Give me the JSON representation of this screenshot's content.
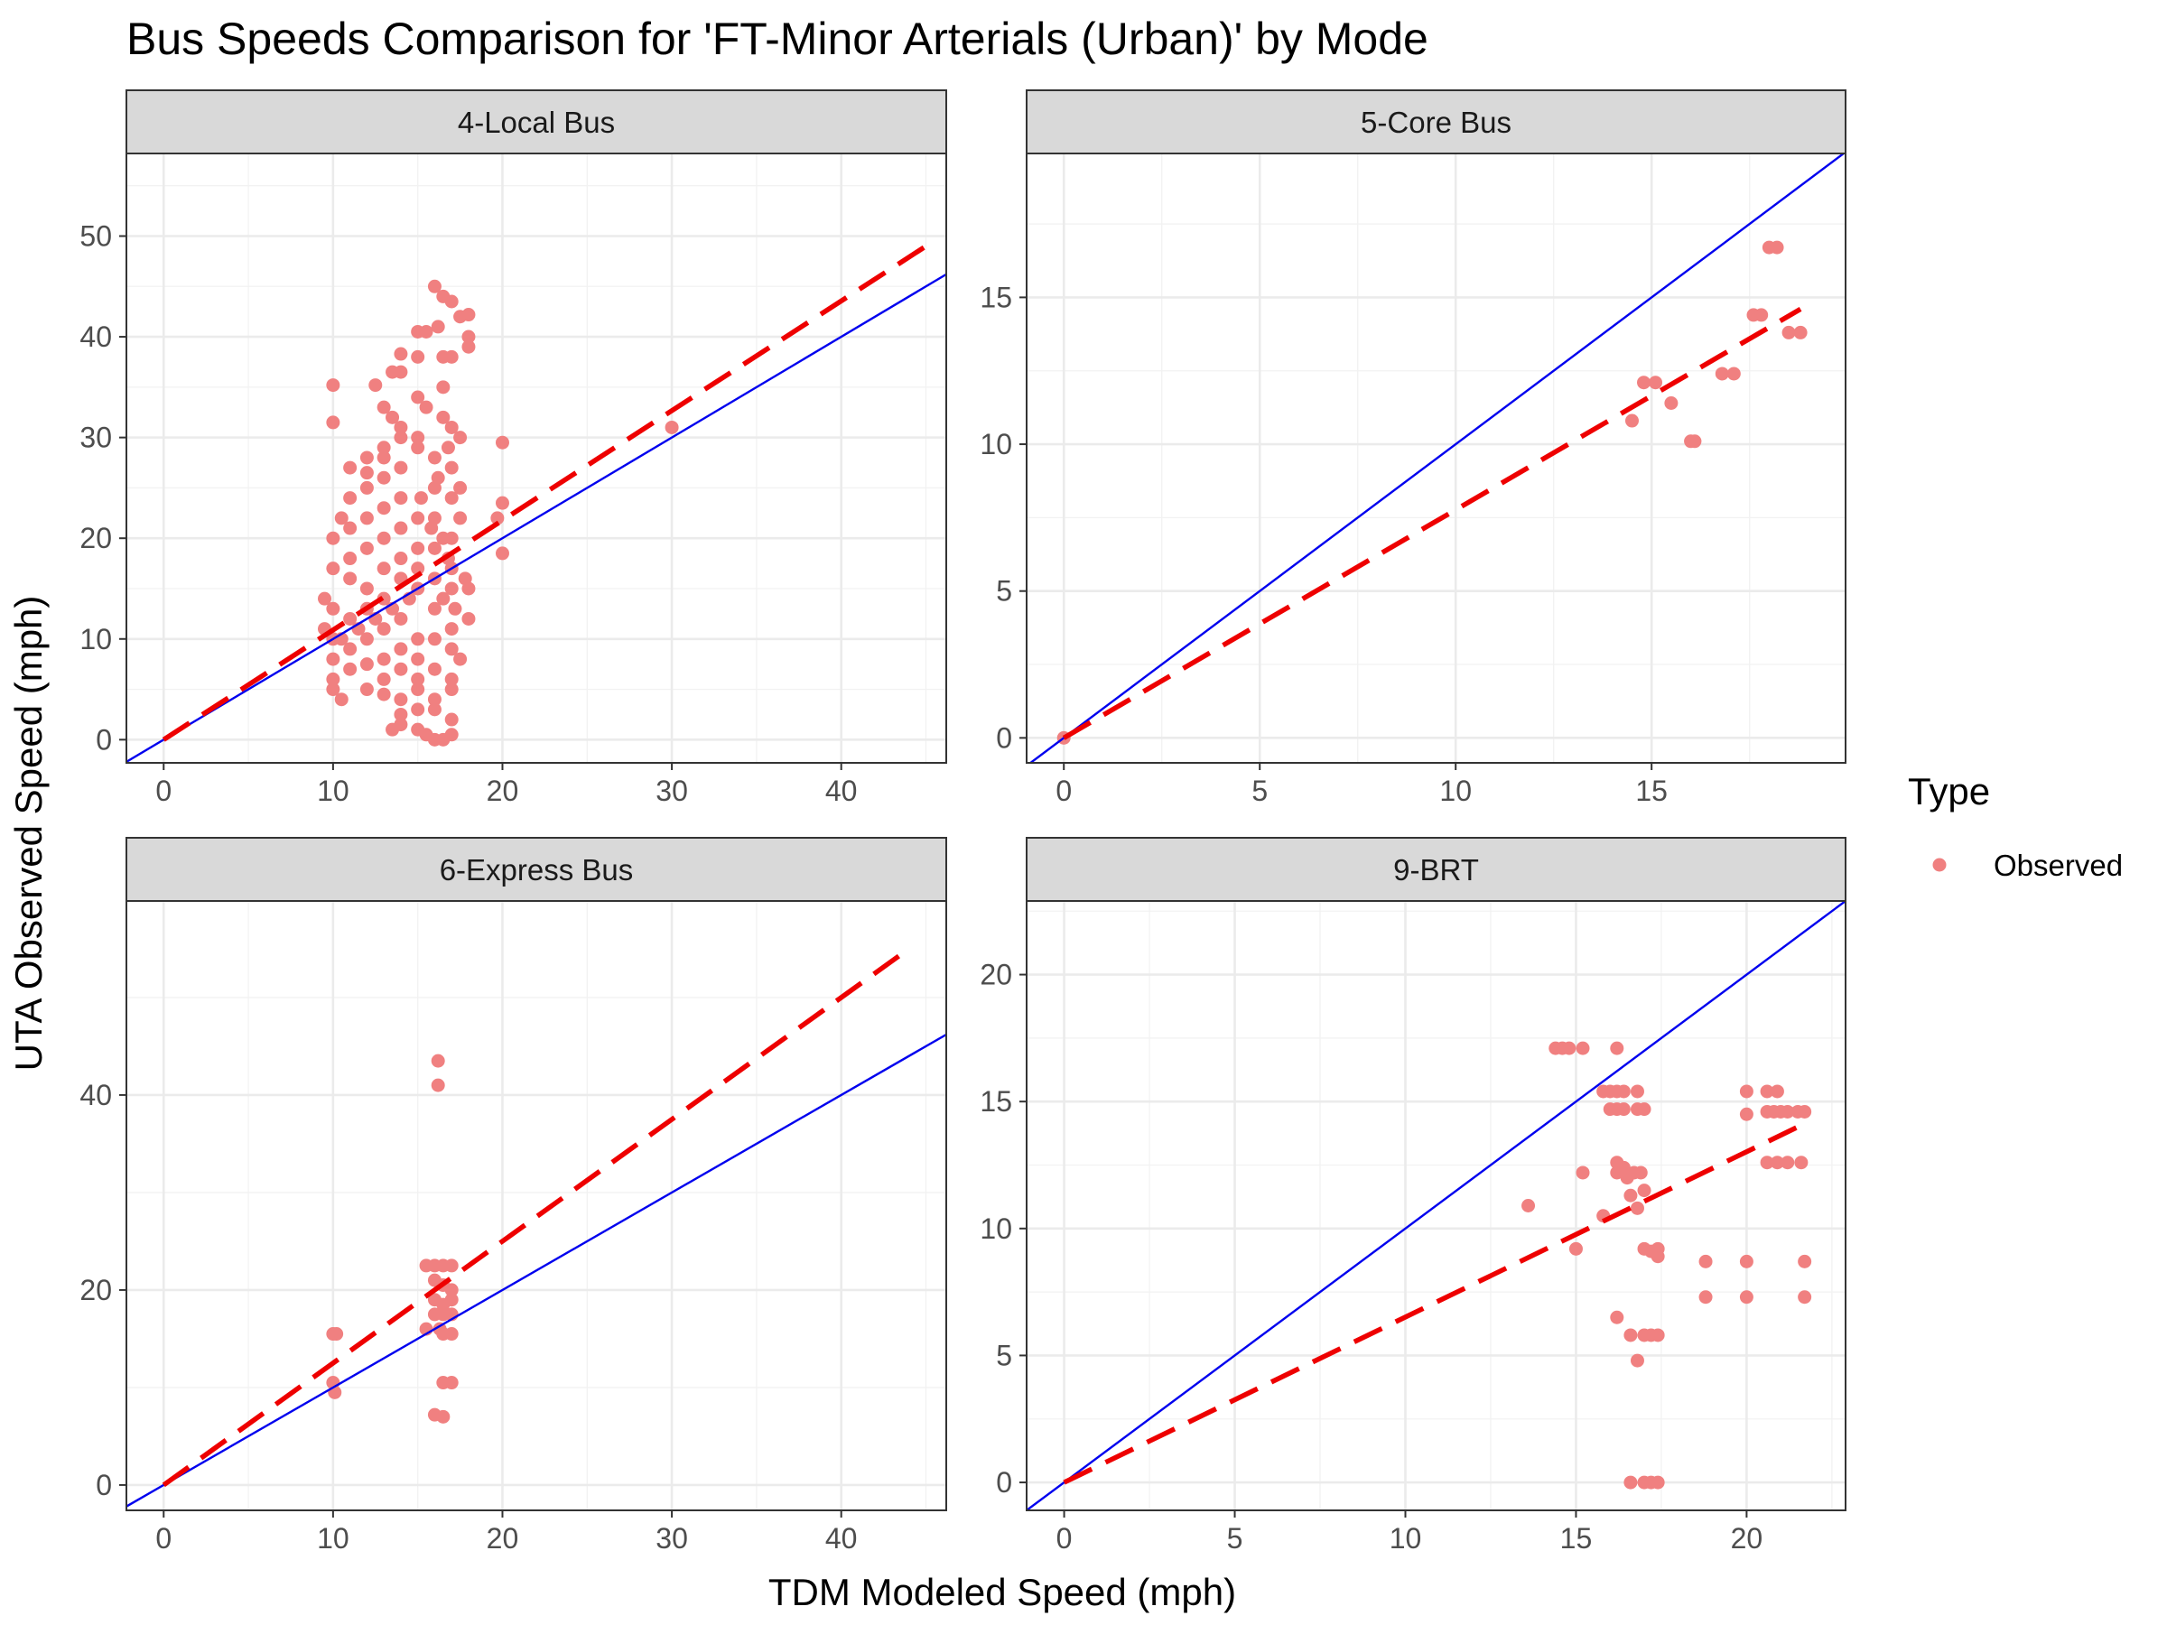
{
  "chart_data": {
    "type": "scatter",
    "title": "Bus Speeds Comparison for 'FT-Minor Arterials (Urban)' by Mode",
    "xlabel": "TDM Modeled Speed (mph)",
    "ylabel": "UTA Observed Speed (mph)",
    "grid": true,
    "legend": {
      "title": "Type",
      "placement": "right",
      "entries": [
        {
          "label": "Observed",
          "color": "#F08080"
        }
      ]
    },
    "colors": {
      "points": "#F08080",
      "identity_line": "#0000EE",
      "fit_line": "#EE0000",
      "strip": "#D9D9D9"
    },
    "panels": [
      {
        "name": "4-Local Bus",
        "xlim": [
          -2.2,
          46.2
        ],
        "ylim": [
          -2.3,
          58.2
        ],
        "xticks": [
          0,
          10,
          20,
          30,
          40
        ],
        "yticks": [
          0,
          10,
          20,
          30,
          40,
          50
        ],
        "fit_line": {
          "x": [
            0,
            45
          ],
          "y": [
            0,
            49
          ]
        },
        "identity_line": true,
        "points": [
          [
            16,
            45
          ],
          [
            16.5,
            44
          ],
          [
            17,
            43.5
          ],
          [
            18,
            42.2
          ],
          [
            17.5,
            42
          ],
          [
            16.2,
            41
          ],
          [
            15,
            40.5
          ],
          [
            15.5,
            40.5
          ],
          [
            18,
            40
          ],
          [
            18,
            39
          ],
          [
            17,
            38
          ],
          [
            16.5,
            38
          ],
          [
            14,
            38.3
          ],
          [
            15,
            38
          ],
          [
            13.5,
            36.5
          ],
          [
            14,
            36.5
          ],
          [
            16.5,
            35
          ],
          [
            10,
            35.2
          ],
          [
            12.5,
            35.2
          ],
          [
            10,
            31.5
          ],
          [
            13,
            33
          ],
          [
            13.5,
            32
          ],
          [
            14,
            31
          ],
          [
            15,
            34
          ],
          [
            15.5,
            33
          ],
          [
            16.5,
            32
          ],
          [
            13,
            29
          ],
          [
            13,
            28
          ],
          [
            14,
            30
          ],
          [
            15,
            30
          ],
          [
            17,
            31
          ],
          [
            17.5,
            30
          ],
          [
            20,
            29.5
          ],
          [
            30,
            31
          ],
          [
            12,
            28
          ],
          [
            11,
            27
          ],
          [
            12,
            26.5
          ],
          [
            13,
            26
          ],
          [
            14,
            27
          ],
          [
            15,
            29
          ],
          [
            16,
            28
          ],
          [
            17,
            27
          ],
          [
            17.5,
            25
          ],
          [
            11,
            24
          ],
          [
            12,
            25
          ],
          [
            13,
            23
          ],
          [
            14,
            24
          ],
          [
            15,
            22
          ],
          [
            16,
            25
          ],
          [
            17,
            24
          ],
          [
            20,
            23.5
          ],
          [
            19.7,
            22
          ],
          [
            10.5,
            22
          ],
          [
            11,
            21
          ],
          [
            12,
            22
          ],
          [
            13,
            20
          ],
          [
            14,
            21
          ],
          [
            15,
            19
          ],
          [
            16,
            22
          ],
          [
            17,
            20
          ],
          [
            17.5,
            22
          ],
          [
            10,
            20
          ],
          [
            11,
            18
          ],
          [
            12,
            19
          ],
          [
            13,
            17
          ],
          [
            14,
            18
          ],
          [
            15,
            17
          ],
          [
            16,
            19
          ],
          [
            17,
            17
          ],
          [
            10,
            17
          ],
          [
            11,
            16
          ],
          [
            12,
            15
          ],
          [
            13,
            14
          ],
          [
            14,
            16
          ],
          [
            15,
            15
          ],
          [
            16,
            16
          ],
          [
            17,
            15
          ],
          [
            18,
            15
          ],
          [
            20,
            18.5
          ],
          [
            9.5,
            14
          ],
          [
            10,
            13
          ],
          [
            11,
            12
          ],
          [
            12,
            13
          ],
          [
            13,
            11
          ],
          [
            14,
            12
          ],
          [
            15,
            10
          ],
          [
            16,
            13
          ],
          [
            17,
            11
          ],
          [
            18,
            12
          ],
          [
            9.5,
            11
          ],
          [
            10,
            10
          ],
          [
            11,
            9
          ],
          [
            12,
            10
          ],
          [
            13,
            8
          ],
          [
            14,
            9
          ],
          [
            15,
            8
          ],
          [
            16,
            10
          ],
          [
            17,
            9
          ],
          [
            17.5,
            8
          ],
          [
            10,
            8
          ],
          [
            11,
            7
          ],
          [
            12,
            7.5
          ],
          [
            13,
            6
          ],
          [
            14,
            7
          ],
          [
            15,
            6
          ],
          [
            16,
            7
          ],
          [
            17,
            6
          ],
          [
            10,
            6
          ],
          [
            10,
            5
          ],
          [
            10.5,
            4
          ],
          [
            12,
            5
          ],
          [
            13,
            4.5
          ],
          [
            14,
            4
          ],
          [
            15,
            5
          ],
          [
            16,
            4
          ],
          [
            17,
            5
          ],
          [
            13.5,
            1
          ],
          [
            14,
            1.5
          ],
          [
            15,
            1
          ],
          [
            15.5,
            0.5
          ],
          [
            16,
            0
          ],
          [
            16.5,
            0
          ],
          [
            17,
            0.5
          ],
          [
            17,
            2
          ],
          [
            16,
            3
          ],
          [
            15,
            3
          ],
          [
            14,
            2.5
          ],
          [
            16.5,
            14
          ],
          [
            16.8,
            18
          ],
          [
            15.8,
            21
          ],
          [
            16.2,
            26
          ],
          [
            16.8,
            29
          ],
          [
            15.2,
            24
          ],
          [
            14.5,
            14
          ],
          [
            13.5,
            13
          ],
          [
            12.5,
            12
          ],
          [
            11.5,
            11
          ],
          [
            10.5,
            10
          ],
          [
            16.5,
            20
          ],
          [
            17.2,
            13
          ],
          [
            17.8,
            16
          ]
        ]
      },
      {
        "name": "5-Core Bus",
        "xlim": [
          -0.95,
          19.95
        ],
        "ylim": [
          -0.85,
          19.9
        ],
        "xticks": [
          0,
          5,
          10,
          15
        ],
        "yticks": [
          0,
          5,
          10,
          15
        ],
        "fit_line": {
          "x": [
            0,
            18.8
          ],
          "y": [
            0,
            14.6
          ]
        },
        "identity_line": true,
        "points": [
          [
            0,
            0
          ],
          [
            14.5,
            10.8
          ],
          [
            14.8,
            12.1
          ],
          [
            15.1,
            12.1
          ],
          [
            15.5,
            11.4
          ],
          [
            16,
            10.1
          ],
          [
            16.1,
            10.1
          ],
          [
            16.8,
            12.4
          ],
          [
            17.1,
            12.4
          ],
          [
            17.6,
            14.4
          ],
          [
            17.8,
            14.4
          ],
          [
            18,
            16.7
          ],
          [
            18.2,
            16.7
          ],
          [
            18.5,
            13.8
          ],
          [
            18.8,
            13.8
          ]
        ]
      },
      {
        "name": "6-Express Bus",
        "xlim": [
          -2.2,
          46.2
        ],
        "ylim": [
          -2.6,
          59.9
        ],
        "xticks": [
          0,
          10,
          20,
          30,
          40
        ],
        "yticks": [
          0,
          20,
          40
        ],
        "fit_line": {
          "x": [
            0,
            44
          ],
          "y": [
            0,
            55
          ]
        },
        "identity_line": true,
        "points": [
          [
            10,
            15.5
          ],
          [
            10.2,
            15.5
          ],
          [
            10,
            10.5
          ],
          [
            10.1,
            9.5
          ],
          [
            15.5,
            16
          ],
          [
            15.5,
            22.5
          ],
          [
            16,
            22.5
          ],
          [
            16.5,
            22.5
          ],
          [
            17,
            22.5
          ],
          [
            16,
            21
          ],
          [
            16.5,
            20.5
          ],
          [
            17,
            20
          ],
          [
            16,
            19
          ],
          [
            16.5,
            18.5
          ],
          [
            17,
            19
          ],
          [
            16,
            17.5
          ],
          [
            16.5,
            17.5
          ],
          [
            17,
            17.5
          ],
          [
            16.3,
            16
          ],
          [
            16.5,
            15.5
          ],
          [
            17,
            15.5
          ],
          [
            16.5,
            10.5
          ],
          [
            17,
            10.5
          ],
          [
            16,
            7.2
          ],
          [
            16.5,
            7
          ],
          [
            16.2,
            43.5
          ],
          [
            16.2,
            41
          ]
        ]
      },
      {
        "name": "9-BRT",
        "xlim": [
          -1.1,
          22.9
        ],
        "ylim": [
          -1.1,
          22.9
        ],
        "xticks": [
          0,
          5,
          10,
          15,
          20
        ],
        "yticks": [
          0,
          5,
          10,
          15,
          20
        ],
        "fit_line": {
          "x": [
            0,
            21.5
          ],
          "y": [
            0,
            14
          ]
        },
        "identity_line": true,
        "points": [
          [
            14.4,
            17.1
          ],
          [
            14.6,
            17.1
          ],
          [
            14.8,
            17.1
          ],
          [
            15.2,
            17.1
          ],
          [
            16.2,
            17.1
          ],
          [
            15.8,
            15.4
          ],
          [
            16.0,
            15.4
          ],
          [
            16.2,
            15.4
          ],
          [
            16.4,
            15.4
          ],
          [
            16.8,
            15.4
          ],
          [
            16.0,
            14.7
          ],
          [
            16.2,
            14.7
          ],
          [
            16.4,
            14.7
          ],
          [
            16.8,
            14.7
          ],
          [
            17.0,
            14.7
          ],
          [
            16.2,
            12.6
          ],
          [
            16.4,
            12.4
          ],
          [
            16.2,
            12.2
          ],
          [
            16.5,
            12.0
          ],
          [
            16.7,
            12.2
          ],
          [
            16.9,
            12.2
          ],
          [
            17.0,
            11.5
          ],
          [
            16.6,
            11.3
          ],
          [
            16.8,
            10.8
          ],
          [
            13.6,
            10.9
          ],
          [
            15.2,
            12.2
          ],
          [
            15.8,
            10.5
          ],
          [
            15.0,
            9.2
          ],
          [
            17.0,
            9.2
          ],
          [
            17.2,
            9.1
          ],
          [
            17.4,
            8.9
          ],
          [
            17.4,
            9.2
          ],
          [
            16.2,
            6.5
          ],
          [
            16.6,
            5.8
          ],
          [
            17.0,
            5.8
          ],
          [
            17.2,
            5.8
          ],
          [
            17.4,
            5.8
          ],
          [
            16.8,
            4.8
          ],
          [
            16.6,
            0
          ],
          [
            17.0,
            0
          ],
          [
            17.2,
            0
          ],
          [
            17.4,
            0
          ],
          [
            20,
            15.4
          ],
          [
            20.6,
            15.4
          ],
          [
            20.9,
            15.4
          ],
          [
            20,
            14.5
          ],
          [
            20.6,
            14.6
          ],
          [
            20.8,
            14.6
          ],
          [
            21.0,
            14.6
          ],
          [
            21.2,
            14.6
          ],
          [
            21.5,
            14.6
          ],
          [
            21.7,
            14.6
          ],
          [
            20.6,
            12.6
          ],
          [
            20.9,
            12.6
          ],
          [
            21.2,
            12.6
          ],
          [
            21.6,
            12.6
          ],
          [
            18.8,
            8.7
          ],
          [
            20,
            8.7
          ],
          [
            21.7,
            8.7
          ],
          [
            18.8,
            7.3
          ],
          [
            20,
            7.3
          ],
          [
            21.7,
            7.3
          ]
        ]
      }
    ]
  }
}
